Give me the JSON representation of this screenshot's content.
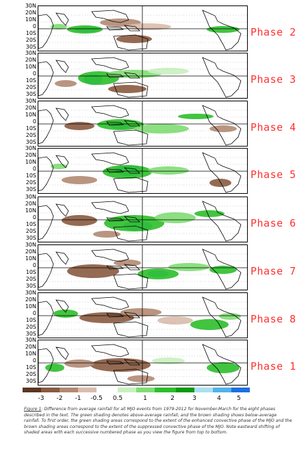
{
  "panels": [
    {
      "phase": "Phase 2"
    },
    {
      "phase": "Phase 3"
    },
    {
      "phase": "Phase 4"
    },
    {
      "phase": "Phase 5"
    },
    {
      "phase": "Phase 6"
    },
    {
      "phase": "Phase 7"
    },
    {
      "phase": "Phase 8"
    },
    {
      "phase": "Phase 1"
    }
  ],
  "lat_labels": [
    "30N",
    "20N",
    "10N",
    "0",
    "10S",
    "20S",
    "30S"
  ],
  "colorbar": {
    "ticks": [
      "-3",
      "-2",
      "-1",
      "-0.5",
      "0.5",
      "1",
      "2",
      "3",
      "4",
      "5"
    ],
    "colors": [
      "#5a3722",
      "#8a5a3f",
      "#b28a72",
      "#d9bcad",
      "#ffffff",
      "#c9f0c0",
      "#7fdd73",
      "#2cbf2a",
      "#0a9a0a",
      "#a8e0f2",
      "#4fb3ea",
      "#1f6fe0"
    ]
  },
  "caption": {
    "figure_label": "Figure 1",
    "text": ": Difference from average rainfall for all MJO events from 1979-2012 for November-March for the eight phases described in the text. The green shading denotes above-average rainfall, and the brown shading shows below-average rainfall. To first order, the green shading areas correspond to the extent of the enhanced convective phase of the MJO and the brown shading areas correspond to the extent of the suppressed convective phase of the MJO. Note eastward shifting of shaded areas with each successive numbered phase as you view the figure from top to bottom."
  }
}
